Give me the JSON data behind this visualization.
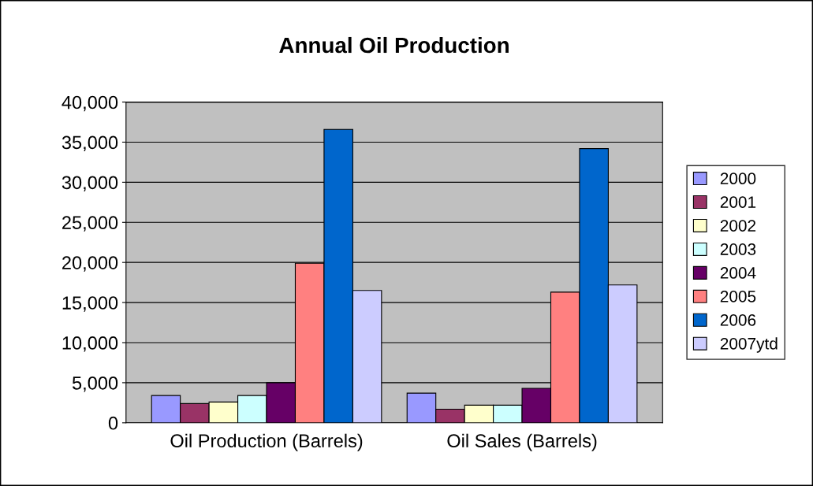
{
  "chart_data": {
    "type": "bar",
    "title": "Annual Oil Production",
    "categories": [
      "Oil Production (Barrels)",
      "Oil Sales (Barrels)"
    ],
    "series": [
      {
        "name": "2000",
        "color": "#9999ff",
        "values": [
          3400,
          3700
        ]
      },
      {
        "name": "2001",
        "color": "#993366",
        "values": [
          2400,
          1700
        ]
      },
      {
        "name": "2002",
        "color": "#ffffcc",
        "values": [
          2600,
          2200
        ]
      },
      {
        "name": "2003",
        "color": "#ccffff",
        "values": [
          3400,
          2200
        ]
      },
      {
        "name": "2004",
        "color": "#660066",
        "values": [
          5000,
          4300
        ]
      },
      {
        "name": "2005",
        "color": "#ff8080",
        "values": [
          19900,
          16300
        ]
      },
      {
        "name": "2006",
        "color": "#0066cc",
        "values": [
          36600,
          34200
        ]
      },
      {
        "name": "2007ytd",
        "color": "#ccccff",
        "values": [
          16500,
          17200
        ]
      }
    ],
    "ylim": [
      0,
      40000
    ],
    "yticks": [
      {
        "value": 0,
        "label": "0"
      },
      {
        "value": 5000,
        "label": "5,000"
      },
      {
        "value": 10000,
        "label": "10,000"
      },
      {
        "value": 15000,
        "label": "15,000"
      },
      {
        "value": 20000,
        "label": "20,000"
      },
      {
        "value": 25000,
        "label": "25,000"
      },
      {
        "value": 30000,
        "label": "30,000"
      },
      {
        "value": 35000,
        "label": "35,000"
      },
      {
        "value": 40000,
        "label": "40,000"
      }
    ],
    "grid": "y",
    "legend": "right"
  }
}
